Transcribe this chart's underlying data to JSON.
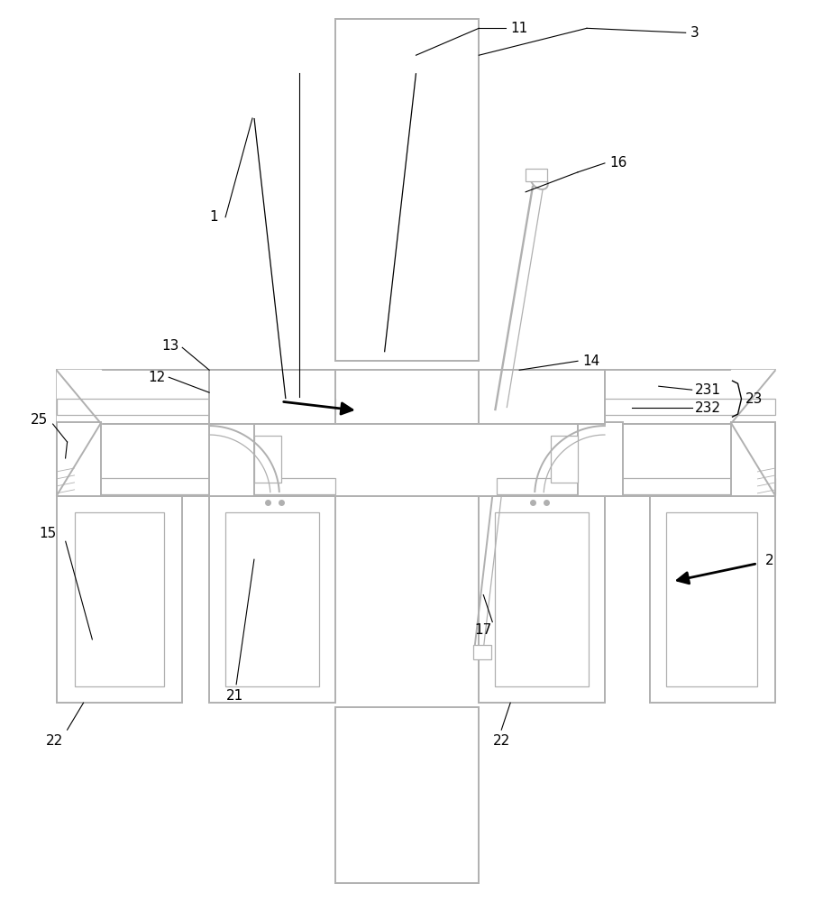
{
  "bg_color": "#ffffff",
  "gc": "#b0b0b0",
  "lw_outer": 1.4,
  "lw_inner": 0.9,
  "lw_thin": 0.6,
  "label_fs": 11,
  "figsize": [
    9.23,
    10.0
  ],
  "dpi": 100
}
